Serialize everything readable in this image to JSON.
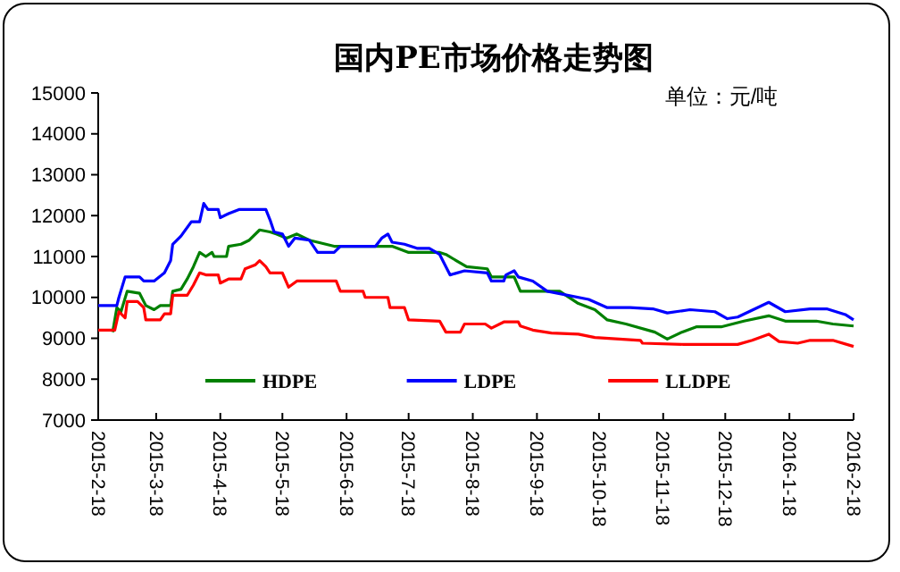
{
  "chart_data": {
    "type": "line",
    "title": "国内PE市场价格走势图",
    "annotations": [
      "单位：元/吨"
    ],
    "xlim": [
      "2015-02-18",
      "2016-02-18"
    ],
    "xticks": [
      {
        "value": "2015-02-18",
        "label": "2015-2-18"
      },
      {
        "value": "2015-03-18",
        "label": "2015-3-18"
      },
      {
        "value": "2015-04-18",
        "label": "2015-4-18"
      },
      {
        "value": "2015-05-18",
        "label": "2015-5-18"
      },
      {
        "value": "2015-06-18",
        "label": "2015-6-18"
      },
      {
        "value": "2015-07-18",
        "label": "2015-7-18"
      },
      {
        "value": "2015-08-18",
        "label": "2015-8-18"
      },
      {
        "value": "2015-09-18",
        "label": "2015-9-18"
      },
      {
        "value": "2015-10-18",
        "label": "2015-10-18"
      },
      {
        "value": "2015-11-18",
        "label": "2015-11-18"
      },
      {
        "value": "2015-12-18",
        "label": "2015-12-18"
      },
      {
        "value": "2016-01-18",
        "label": "2016-1-18"
      },
      {
        "value": "2016-02-18",
        "label": "2016-2-18"
      }
    ],
    "ylim": [
      7000,
      15000
    ],
    "yticks": [
      7000,
      8000,
      9000,
      10000,
      11000,
      12000,
      13000,
      14000,
      15000
    ],
    "grid": false,
    "legend": "bottom",
    "marker": "none",
    "line_style": "solid",
    "series": [
      {
        "name": "HDPE",
        "color": "#008000",
        "x": [
          "2015-02-25",
          "2015-02-27",
          "2015-03-01",
          "2015-03-04",
          "2015-03-10",
          "2015-03-13",
          "2015-03-17",
          "2015-03-20",
          "2015-03-25",
          "2015-03-26",
          "2015-03-30",
          "2015-04-02",
          "2015-04-05",
          "2015-04-08",
          "2015-04-11",
          "2015-04-14",
          "2015-04-15",
          "2015-04-21",
          "2015-04-22",
          "2015-04-28",
          "2015-05-02",
          "2015-05-07",
          "2015-05-12",
          "2015-05-15",
          "2015-05-20",
          "2015-05-25",
          "2015-05-31",
          "2015-06-04",
          "2015-06-12",
          "2015-07-10",
          "2015-07-18",
          "2015-08-02",
          "2015-08-05",
          "2015-08-15",
          "2015-08-25",
          "2015-08-27",
          "2015-09-07",
          "2015-09-10",
          "2015-09-29",
          "2015-10-08",
          "2015-10-16",
          "2015-10-22",
          "2015-10-31",
          "2015-11-14",
          "2015-11-20",
          "2015-11-27",
          "2015-12-04",
          "2015-12-16",
          "2015-12-27",
          "2016-01-08",
          "2016-01-16",
          "2016-01-31",
          "2016-02-08",
          "2016-02-18"
        ],
        "values": [
          9150,
          9750,
          9650,
          10150,
          10100,
          9800,
          9700,
          9800,
          9800,
          10150,
          10200,
          10450,
          10750,
          11100,
          11000,
          11100,
          11000,
          11000,
          11250,
          11300,
          11400,
          11650,
          11600,
          11550,
          11450,
          11550,
          11400,
          11350,
          11250,
          11250,
          11100,
          11100,
          11050,
          10750,
          10700,
          10500,
          10500,
          10150,
          10150,
          9850,
          9700,
          9450,
          9350,
          9150,
          8980,
          9150,
          9280,
          9280,
          9420,
          9550,
          9420,
          9420,
          9350,
          9300
        ]
      },
      {
        "name": "LDPE",
        "color": "#0000ff",
        "x": [
          "2015-02-18",
          "2015-02-27",
          "2015-02-28",
          "2015-03-03",
          "2015-03-10",
          "2015-03-12",
          "2015-03-17",
          "2015-03-22",
          "2015-03-25",
          "2015-03-26",
          "2015-03-30",
          "2015-04-04",
          "2015-04-08",
          "2015-04-10",
          "2015-04-12",
          "2015-04-17",
          "2015-04-18",
          "2015-04-22",
          "2015-04-27",
          "2015-05-10",
          "2015-05-12",
          "2015-05-14",
          "2015-05-18",
          "2015-05-21",
          "2015-05-24",
          "2015-05-31",
          "2015-06-04",
          "2015-06-12",
          "2015-06-15",
          "2015-07-02",
          "2015-07-05",
          "2015-07-08",
          "2015-07-10",
          "2015-07-16",
          "2015-07-22",
          "2015-07-28",
          "2015-08-02",
          "2015-08-07",
          "2015-08-14",
          "2015-08-25",
          "2015-08-27",
          "2015-09-02",
          "2015-09-03",
          "2015-09-07",
          "2015-09-09",
          "2015-09-16",
          "2015-09-23",
          "2015-10-13",
          "2015-10-22",
          "2015-11-02",
          "2015-11-13",
          "2015-11-20",
          "2015-12-01",
          "2015-12-13",
          "2015-12-19",
          "2015-12-24",
          "2016-01-08",
          "2016-01-16",
          "2016-01-28",
          "2016-02-05",
          "2016-02-14",
          "2016-02-18"
        ],
        "values": [
          9800,
          9800,
          10000,
          10500,
          10500,
          10400,
          10400,
          10600,
          10900,
          11300,
          11500,
          11850,
          11850,
          12300,
          12150,
          12150,
          11950,
          12050,
          12150,
          12150,
          11900,
          11600,
          11550,
          11250,
          11450,
          11400,
          11100,
          11100,
          11250,
          11250,
          11450,
          11550,
          11350,
          11300,
          11200,
          11200,
          11050,
          10550,
          10650,
          10600,
          10400,
          10400,
          10550,
          10650,
          10500,
          10400,
          10150,
          9950,
          9750,
          9750,
          9720,
          9620,
          9700,
          9650,
          9480,
          9520,
          9880,
          9650,
          9720,
          9720,
          9580,
          9450
        ]
      },
      {
        "name": "LLDPE",
        "color": "#ff0000",
        "x": [
          "2015-02-18",
          "2015-02-26",
          "2015-02-28",
          "2015-03-03",
          "2015-03-04",
          "2015-03-09",
          "2015-03-12",
          "2015-03-13",
          "2015-03-20",
          "2015-03-22",
          "2015-03-25",
          "2015-03-26",
          "2015-04-02",
          "2015-04-05",
          "2015-04-08",
          "2015-04-11",
          "2015-04-17",
          "2015-04-18",
          "2015-04-22",
          "2015-04-28",
          "2015-04-30",
          "2015-05-05",
          "2015-05-07",
          "2015-05-10",
          "2015-05-12",
          "2015-05-18",
          "2015-05-21",
          "2015-05-25",
          "2015-06-13",
          "2015-06-15",
          "2015-06-26",
          "2015-06-27",
          "2015-07-08",
          "2015-07-09",
          "2015-07-16",
          "2015-07-18",
          "2015-08-02",
          "2015-08-05",
          "2015-08-12",
          "2015-08-14",
          "2015-08-24",
          "2015-08-27",
          "2015-09-02",
          "2015-09-09",
          "2015-09-10",
          "2015-09-16",
          "2015-09-25",
          "2015-10-08",
          "2015-10-16",
          "2015-11-07",
          "2015-11-08",
          "2015-11-28",
          "2015-12-24",
          "2015-12-31",
          "2016-01-08",
          "2016-01-13",
          "2016-01-22",
          "2016-01-28",
          "2016-02-08",
          "2016-02-18"
        ],
        "values": [
          9200,
          9200,
          9650,
          9500,
          9900,
          9900,
          9750,
          9450,
          9450,
          9600,
          9600,
          10050,
          10050,
          10300,
          10600,
          10550,
          10550,
          10350,
          10450,
          10450,
          10700,
          10800,
          10900,
          10750,
          10600,
          10600,
          10250,
          10400,
          10400,
          10150,
          10150,
          10000,
          10000,
          9750,
          9750,
          9450,
          9420,
          9150,
          9150,
          9350,
          9350,
          9250,
          9400,
          9400,
          9300,
          9200,
          9130,
          9100,
          9020,
          8950,
          8880,
          8850,
          8850,
          8950,
          9100,
          8920,
          8880,
          8950,
          8950,
          8800
        ]
      }
    ]
  }
}
